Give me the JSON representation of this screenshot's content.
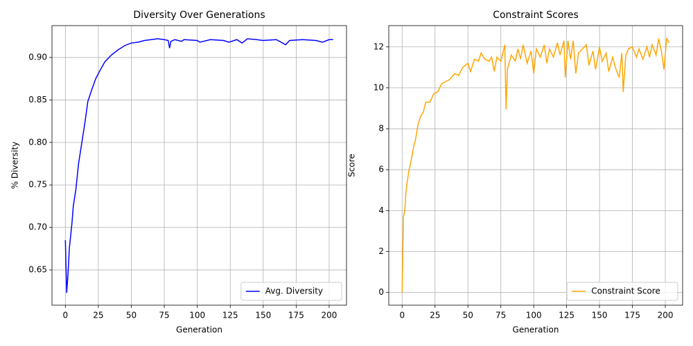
{
  "chart_data": [
    {
      "type": "line",
      "title": "Diversity Over Generations",
      "x_label": "Generation",
      "y_label": "% Diversity",
      "x": [
        0,
        1,
        2,
        3,
        5,
        6,
        8,
        10,
        13,
        15,
        17,
        20,
        23,
        26,
        30,
        35,
        40,
        45,
        50,
        55,
        60,
        65,
        70,
        75,
        78,
        79,
        80,
        83,
        88,
        90,
        100,
        102,
        110,
        120,
        124,
        130,
        134,
        138,
        145,
        150,
        160,
        167,
        170,
        180,
        190,
        195,
        200,
        203
      ],
      "series": [
        {
          "name": "Avg. Diversity",
          "color": "#0000ff",
          "values": [
            0.685,
            0.623,
            0.645,
            0.675,
            0.705,
            0.725,
            0.745,
            0.775,
            0.805,
            0.825,
            0.848,
            0.862,
            0.875,
            0.884,
            0.895,
            0.903,
            0.909,
            0.914,
            0.917,
            0.918,
            0.92,
            0.921,
            0.922,
            0.921,
            0.92,
            0.911,
            0.919,
            0.921,
            0.919,
            0.921,
            0.92,
            0.918,
            0.921,
            0.92,
            0.918,
            0.921,
            0.917,
            0.922,
            0.921,
            0.92,
            0.921,
            0.915,
            0.92,
            0.921,
            0.92,
            0.918,
            0.921,
            0.921
          ]
        }
      ],
      "xlim": [
        -10.15,
        213.15
      ],
      "xticks": [
        0,
        25,
        50,
        75,
        100,
        125,
        150,
        175,
        200
      ],
      "ylim": [
        0.6085,
        0.9375
      ],
      "yticks": [
        {
          "value": 0.65,
          "label": "0.65"
        },
        {
          "value": 0.7,
          "label": "0.70"
        },
        {
          "value": 0.75,
          "label": "0.75"
        },
        {
          "value": 0.8,
          "label": "0.80"
        },
        {
          "value": 0.85,
          "label": "0.85"
        },
        {
          "value": 0.9,
          "label": "0.90"
        }
      ],
      "grid": true,
      "legend": "lower right"
    },
    {
      "type": "line",
      "title": "Constraint Scores",
      "x_label": "Generation",
      "y_label": "Score",
      "x": [
        0,
        1,
        2,
        3,
        5,
        7,
        9,
        10,
        12,
        14,
        16,
        18,
        21,
        24,
        27,
        30,
        33,
        36,
        40,
        43,
        46,
        50,
        52,
        55,
        58,
        60,
        63,
        66,
        68,
        70,
        72,
        75,
        78,
        79,
        80,
        83,
        86,
        88,
        90,
        92,
        95,
        98,
        100,
        102,
        105,
        108,
        110,
        112,
        115,
        118,
        120,
        123,
        124,
        126,
        128,
        130,
        132,
        134,
        137,
        140,
        142,
        145,
        147,
        150,
        152,
        155,
        157,
        160,
        162,
        165,
        167,
        168,
        170,
        172,
        175,
        178,
        180,
        183,
        186,
        188,
        190,
        193,
        195,
        197,
        199,
        201,
        203
      ],
      "series": [
        {
          "name": "Constraint Score",
          "color": "#ffa500",
          "values": [
            0,
            3.7,
            4.0,
            5.0,
            5.9,
            6.5,
            7.2,
            7.4,
            8.2,
            8.6,
            8.8,
            9.3,
            9.3,
            9.7,
            9.8,
            10.2,
            10.3,
            10.4,
            10.7,
            10.6,
            11.0,
            11.2,
            10.8,
            11.4,
            11.3,
            11.7,
            11.4,
            11.3,
            11.5,
            10.8,
            11.5,
            11.3,
            12.1,
            8.95,
            10.9,
            11.6,
            11.3,
            11.9,
            11.4,
            12.1,
            11.2,
            11.8,
            10.7,
            11.9,
            11.5,
            12.1,
            11.2,
            11.9,
            11.5,
            12.2,
            11.6,
            12.3,
            10.5,
            12.3,
            11.4,
            12.3,
            10.7,
            11.7,
            11.9,
            12.1,
            11.1,
            11.8,
            10.9,
            12.0,
            11.3,
            11.7,
            10.8,
            11.5,
            11.0,
            10.5,
            11.7,
            9.8,
            11.6,
            11.9,
            12.0,
            11.5,
            11.9,
            11.4,
            12.0,
            11.5,
            12.1,
            11.6,
            12.4,
            11.8,
            10.9,
            12.4,
            12.2
          ]
        }
      ],
      "xlim": [
        -10.15,
        213.15
      ],
      "xticks": [
        0,
        25,
        50,
        75,
        100,
        125,
        150,
        175,
        200
      ],
      "ylim": [
        -0.62,
        13.04
      ],
      "yticks": [
        0,
        2,
        4,
        6,
        8,
        10,
        12
      ],
      "grid": true,
      "legend": "lower right"
    }
  ]
}
